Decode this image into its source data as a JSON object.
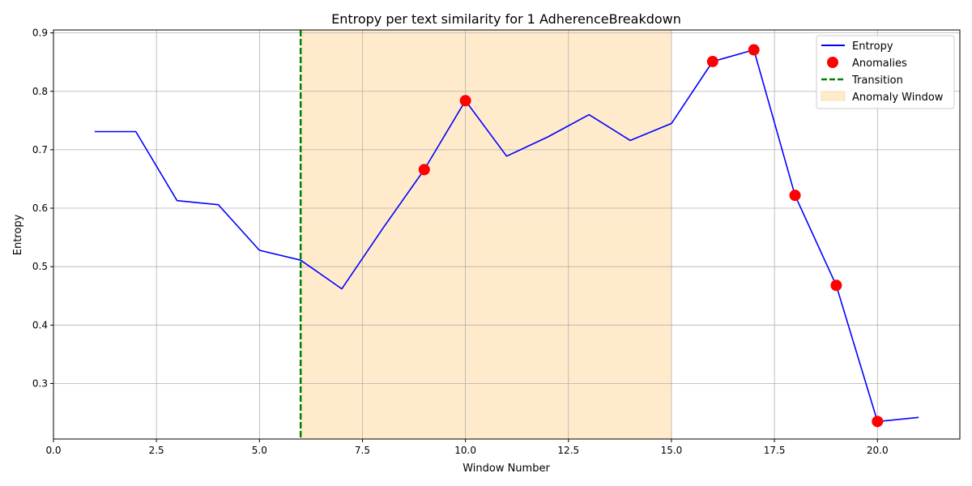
{
  "chart_data": {
    "type": "line",
    "title": "Entropy per text similarity for 1 AdherenceBreakdown",
    "xlabel": "Window Number",
    "ylabel": "Entropy",
    "xlim": [
      0,
      22
    ],
    "ylim": [
      0.205,
      0.905
    ],
    "xticks": [
      0.0,
      2.5,
      5.0,
      7.5,
      10.0,
      12.5,
      15.0,
      17.5,
      20.0
    ],
    "xtick_labels": [
      "0.0",
      "2.5",
      "5.0",
      "7.5",
      "10.0",
      "12.5",
      "15.0",
      "17.5",
      "20.0"
    ],
    "yticks": [
      0.3,
      0.4,
      0.5,
      0.6,
      0.7,
      0.8,
      0.9
    ],
    "ytick_labels": [
      "0.3",
      "0.4",
      "0.5",
      "0.6",
      "0.7",
      "0.8",
      "0.9"
    ],
    "grid": true,
    "legend_position": "top-right",
    "series": [
      {
        "name": "Entropy",
        "color": "#0000ff",
        "x": [
          1,
          2,
          3,
          4,
          5,
          6,
          7,
          8,
          9,
          10,
          11,
          12,
          13,
          14,
          15,
          16,
          17,
          18,
          19,
          20,
          21
        ],
        "y": [
          0.731,
          0.731,
          0.613,
          0.606,
          0.528,
          0.511,
          0.462,
          0.566,
          0.666,
          0.784,
          0.689,
          0.722,
          0.76,
          0.716,
          0.745,
          0.851,
          0.871,
          0.622,
          0.468,
          0.235,
          0.242
        ]
      }
    ],
    "anomalies": {
      "name": "Anomalies",
      "color": "#ff0000",
      "x": [
        9,
        10,
        16,
        17,
        18,
        19,
        20
      ],
      "y": [
        0.666,
        0.784,
        0.851,
        0.871,
        0.622,
        0.468,
        0.235
      ]
    },
    "transition": {
      "name": "Transition",
      "x": 6,
      "color": "#008000"
    },
    "anomaly_window": {
      "name": "Anomaly Window",
      "x_start": 6,
      "x_end": 15,
      "color": "#ffebcc"
    }
  }
}
